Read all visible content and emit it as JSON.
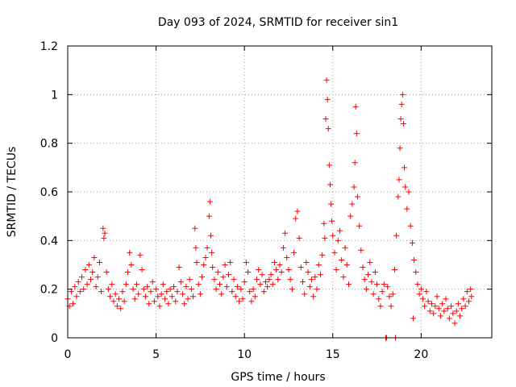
{
  "chart_data": {
    "type": "scatter",
    "title": "Day 093 of 2024, SRMTID for receiver sin1",
    "xlabel": "GPS time / hours",
    "ylabel": "SRMTID / TECUs",
    "xlim": [
      0,
      24
    ],
    "ylim": [
      0,
      1.2
    ],
    "grid": true,
    "marker": "+",
    "colors": {
      "points": "#ff0000",
      "grid": "#a0a0a0",
      "axis": "#000000"
    },
    "xticks": [
      {
        "value": 0,
        "label": "0"
      },
      {
        "value": 5,
        "label": "5"
      },
      {
        "value": 10,
        "label": "10"
      },
      {
        "value": 15,
        "label": "15"
      },
      {
        "value": 20,
        "label": "20"
      }
    ],
    "yticks": [
      {
        "value": 0,
        "label": "0"
      },
      {
        "value": 0.2,
        "label": "0.2"
      },
      {
        "value": 0.4,
        "label": "0.4"
      },
      {
        "value": 0.6,
        "label": "0.6"
      },
      {
        "value": 0.8,
        "label": "0.8"
      },
      {
        "value": 1.0,
        "label": "1"
      },
      {
        "value": 1.2,
        "label": "1.2"
      }
    ],
    "series": [
      {
        "name": "sin1",
        "points": [
          [
            0.0,
            0.16
          ],
          [
            0.1,
            0.13
          ],
          [
            0.2,
            0.19
          ],
          [
            0.3,
            0.14
          ],
          [
            0.4,
            0.21
          ],
          [
            0.5,
            0.17
          ],
          [
            0.6,
            0.23
          ],
          [
            0.7,
            0.19
          ],
          [
            0.8,
            0.25
          ],
          [
            0.9,
            0.2
          ],
          [
            1.0,
            0.28
          ],
          [
            1.1,
            0.22
          ],
          [
            1.2,
            0.3
          ],
          [
            1.3,
            0.24
          ],
          [
            1.4,
            0.27
          ],
          [
            1.5,
            0.33
          ],
          [
            1.6,
            0.21
          ],
          [
            1.7,
            0.25
          ],
          [
            1.8,
            0.31
          ],
          [
            1.9,
            0.19
          ],
          [
            2.0,
            0.45
          ],
          [
            2.05,
            0.41
          ],
          [
            2.1,
            0.43
          ],
          [
            2.2,
            0.27
          ],
          [
            2.3,
            0.2
          ],
          [
            2.4,
            0.17
          ],
          [
            2.5,
            0.22
          ],
          [
            2.6,
            0.15
          ],
          [
            2.7,
            0.18
          ],
          [
            2.8,
            0.13
          ],
          [
            2.9,
            0.16
          ],
          [
            3.0,
            0.12
          ],
          [
            3.1,
            0.19
          ],
          [
            3.2,
            0.15
          ],
          [
            3.3,
            0.22
          ],
          [
            3.4,
            0.27
          ],
          [
            3.5,
            0.35
          ],
          [
            3.6,
            0.3
          ],
          [
            3.7,
            0.2
          ],
          [
            3.8,
            0.16
          ],
          [
            3.9,
            0.22
          ],
          [
            4.0,
            0.18
          ],
          [
            4.1,
            0.34
          ],
          [
            4.2,
            0.28
          ],
          [
            4.3,
            0.2
          ],
          [
            4.4,
            0.17
          ],
          [
            4.5,
            0.21
          ],
          [
            4.6,
            0.14
          ],
          [
            4.7,
            0.19
          ],
          [
            4.8,
            0.23
          ],
          [
            4.9,
            0.15
          ],
          [
            5.0,
            0.2
          ],
          [
            5.1,
            0.17
          ],
          [
            5.2,
            0.13
          ],
          [
            5.3,
            0.18
          ],
          [
            5.4,
            0.22
          ],
          [
            5.5,
            0.16
          ],
          [
            5.6,
            0.19
          ],
          [
            5.7,
            0.14
          ],
          [
            5.8,
            0.2
          ],
          [
            5.9,
            0.17
          ],
          [
            6.0,
            0.21
          ],
          [
            6.1,
            0.15
          ],
          [
            6.2,
            0.19
          ],
          [
            6.3,
            0.29
          ],
          [
            6.4,
            0.23
          ],
          [
            6.5,
            0.18
          ],
          [
            6.6,
            0.14
          ],
          [
            6.7,
            0.21
          ],
          [
            6.8,
            0.16
          ],
          [
            6.9,
            0.24
          ],
          [
            7.0,
            0.2
          ],
          [
            7.1,
            0.17
          ],
          [
            7.2,
            0.45
          ],
          [
            7.25,
            0.37
          ],
          [
            7.3,
            0.31
          ],
          [
            7.4,
            0.22
          ],
          [
            7.5,
            0.18
          ],
          [
            7.6,
            0.25
          ],
          [
            7.7,
            0.3
          ],
          [
            7.8,
            0.33
          ],
          [
            7.9,
            0.37
          ],
          [
            8.0,
            0.5
          ],
          [
            8.05,
            0.56
          ],
          [
            8.1,
            0.42
          ],
          [
            8.15,
            0.35
          ],
          [
            8.2,
            0.29
          ],
          [
            8.3,
            0.24
          ],
          [
            8.4,
            0.2
          ],
          [
            8.5,
            0.27
          ],
          [
            8.6,
            0.22
          ],
          [
            8.7,
            0.18
          ],
          [
            8.8,
            0.25
          ],
          [
            8.9,
            0.3
          ],
          [
            9.0,
            0.21
          ],
          [
            9.1,
            0.26
          ],
          [
            9.2,
            0.31
          ],
          [
            9.3,
            0.19
          ],
          [
            9.4,
            0.24
          ],
          [
            9.5,
            0.17
          ],
          [
            9.6,
            0.21
          ],
          [
            9.7,
            0.15
          ],
          [
            9.8,
            0.2
          ],
          [
            9.9,
            0.16
          ],
          [
            10.0,
            0.23
          ],
          [
            10.1,
            0.31
          ],
          [
            10.2,
            0.27
          ],
          [
            10.3,
            0.19
          ],
          [
            10.4,
            0.15
          ],
          [
            10.5,
            0.2
          ],
          [
            10.6,
            0.17
          ],
          [
            10.7,
            0.24
          ],
          [
            10.8,
            0.28
          ],
          [
            10.9,
            0.22
          ],
          [
            11.0,
            0.26
          ],
          [
            11.1,
            0.19
          ],
          [
            11.2,
            0.23
          ],
          [
            11.3,
            0.21
          ],
          [
            11.4,
            0.24
          ],
          [
            11.5,
            0.26
          ],
          [
            11.6,
            0.22
          ],
          [
            11.7,
            0.31
          ],
          [
            11.8,
            0.28
          ],
          [
            11.9,
            0.24
          ],
          [
            12.0,
            0.3
          ],
          [
            12.1,
            0.27
          ],
          [
            12.2,
            0.37
          ],
          [
            12.3,
            0.43
          ],
          [
            12.4,
            0.33
          ],
          [
            12.5,
            0.28
          ],
          [
            12.6,
            0.24
          ],
          [
            12.7,
            0.2
          ],
          [
            12.8,
            0.35
          ],
          [
            12.9,
            0.49
          ],
          [
            13.0,
            0.52
          ],
          [
            13.1,
            0.41
          ],
          [
            13.2,
            0.29
          ],
          [
            13.3,
            0.23
          ],
          [
            13.4,
            0.18
          ],
          [
            13.5,
            0.31
          ],
          [
            13.6,
            0.27
          ],
          [
            13.7,
            0.21
          ],
          [
            13.8,
            0.24
          ],
          [
            13.9,
            0.17
          ],
          [
            14.0,
            0.25
          ],
          [
            14.1,
            0.2
          ],
          [
            14.2,
            0.3
          ],
          [
            14.3,
            0.26
          ],
          [
            14.4,
            0.34
          ],
          [
            14.5,
            0.47
          ],
          [
            14.55,
            0.41
          ],
          [
            14.6,
            0.9
          ],
          [
            14.65,
            1.06
          ],
          [
            14.7,
            0.98
          ],
          [
            14.75,
            0.86
          ],
          [
            14.8,
            0.71
          ],
          [
            14.85,
            0.63
          ],
          [
            14.9,
            0.55
          ],
          [
            14.95,
            0.48
          ],
          [
            15.0,
            0.42
          ],
          [
            15.1,
            0.35
          ],
          [
            15.2,
            0.28
          ],
          [
            15.3,
            0.4
          ],
          [
            15.4,
            0.44
          ],
          [
            15.5,
            0.32
          ],
          [
            15.6,
            0.25
          ],
          [
            15.7,
            0.37
          ],
          [
            15.8,
            0.3
          ],
          [
            15.9,
            0.22
          ],
          [
            16.0,
            0.5
          ],
          [
            16.1,
            0.55
          ],
          [
            16.2,
            0.62
          ],
          [
            16.25,
            0.72
          ],
          [
            16.3,
            0.95
          ],
          [
            16.35,
            0.84
          ],
          [
            16.4,
            0.58
          ],
          [
            16.5,
            0.46
          ],
          [
            16.6,
            0.36
          ],
          [
            16.7,
            0.29
          ],
          [
            16.8,
            0.24
          ],
          [
            16.9,
            0.2
          ],
          [
            17.0,
            0.26
          ],
          [
            17.1,
            0.31
          ],
          [
            17.2,
            0.23
          ],
          [
            17.3,
            0.18
          ],
          [
            17.4,
            0.27
          ],
          [
            17.5,
            0.22
          ],
          [
            17.6,
            0.16
          ],
          [
            17.7,
            0.13
          ],
          [
            17.8,
            0.19
          ],
          [
            17.9,
            0.22
          ],
          [
            18.0,
            0.0
          ],
          [
            18.05,
            0.0
          ],
          [
            18.1,
            0.21
          ],
          [
            18.2,
            0.17
          ],
          [
            18.3,
            0.13
          ],
          [
            18.4,
            0.18
          ],
          [
            18.5,
            0.28
          ],
          [
            18.55,
            0.0
          ],
          [
            18.6,
            0.42
          ],
          [
            18.7,
            0.58
          ],
          [
            18.75,
            0.65
          ],
          [
            18.8,
            0.78
          ],
          [
            18.85,
            0.9
          ],
          [
            18.9,
            0.96
          ],
          [
            18.95,
            1.0
          ],
          [
            19.0,
            0.88
          ],
          [
            19.05,
            0.7
          ],
          [
            19.1,
            0.62
          ],
          [
            19.2,
            0.53
          ],
          [
            19.3,
            0.6
          ],
          [
            19.4,
            0.46
          ],
          [
            19.5,
            0.39
          ],
          [
            19.55,
            0.08
          ],
          [
            19.6,
            0.32
          ],
          [
            19.7,
            0.27
          ],
          [
            19.8,
            0.22
          ],
          [
            19.9,
            0.18
          ],
          [
            20.0,
            0.2
          ],
          [
            20.1,
            0.16
          ],
          [
            20.2,
            0.13
          ],
          [
            20.3,
            0.19
          ],
          [
            20.4,
            0.15
          ],
          [
            20.5,
            0.11
          ],
          [
            20.6,
            0.14
          ],
          [
            20.7,
            0.1
          ],
          [
            20.8,
            0.13
          ],
          [
            20.9,
            0.17
          ],
          [
            21.0,
            0.12
          ],
          [
            21.1,
            0.09
          ],
          [
            21.2,
            0.14
          ],
          [
            21.3,
            0.11
          ],
          [
            21.4,
            0.16
          ],
          [
            21.5,
            0.12
          ],
          [
            21.6,
            0.08
          ],
          [
            21.7,
            0.13
          ],
          [
            21.8,
            0.1
          ],
          [
            21.9,
            0.06
          ],
          [
            22.0,
            0.11
          ],
          [
            22.1,
            0.14
          ],
          [
            22.2,
            0.09
          ],
          [
            22.3,
            0.12
          ],
          [
            22.4,
            0.16
          ],
          [
            22.5,
            0.13
          ],
          [
            22.6,
            0.19
          ],
          [
            22.7,
            0.15
          ],
          [
            22.8,
            0.2
          ],
          [
            22.85,
            0.17
          ]
        ]
      }
    ]
  }
}
